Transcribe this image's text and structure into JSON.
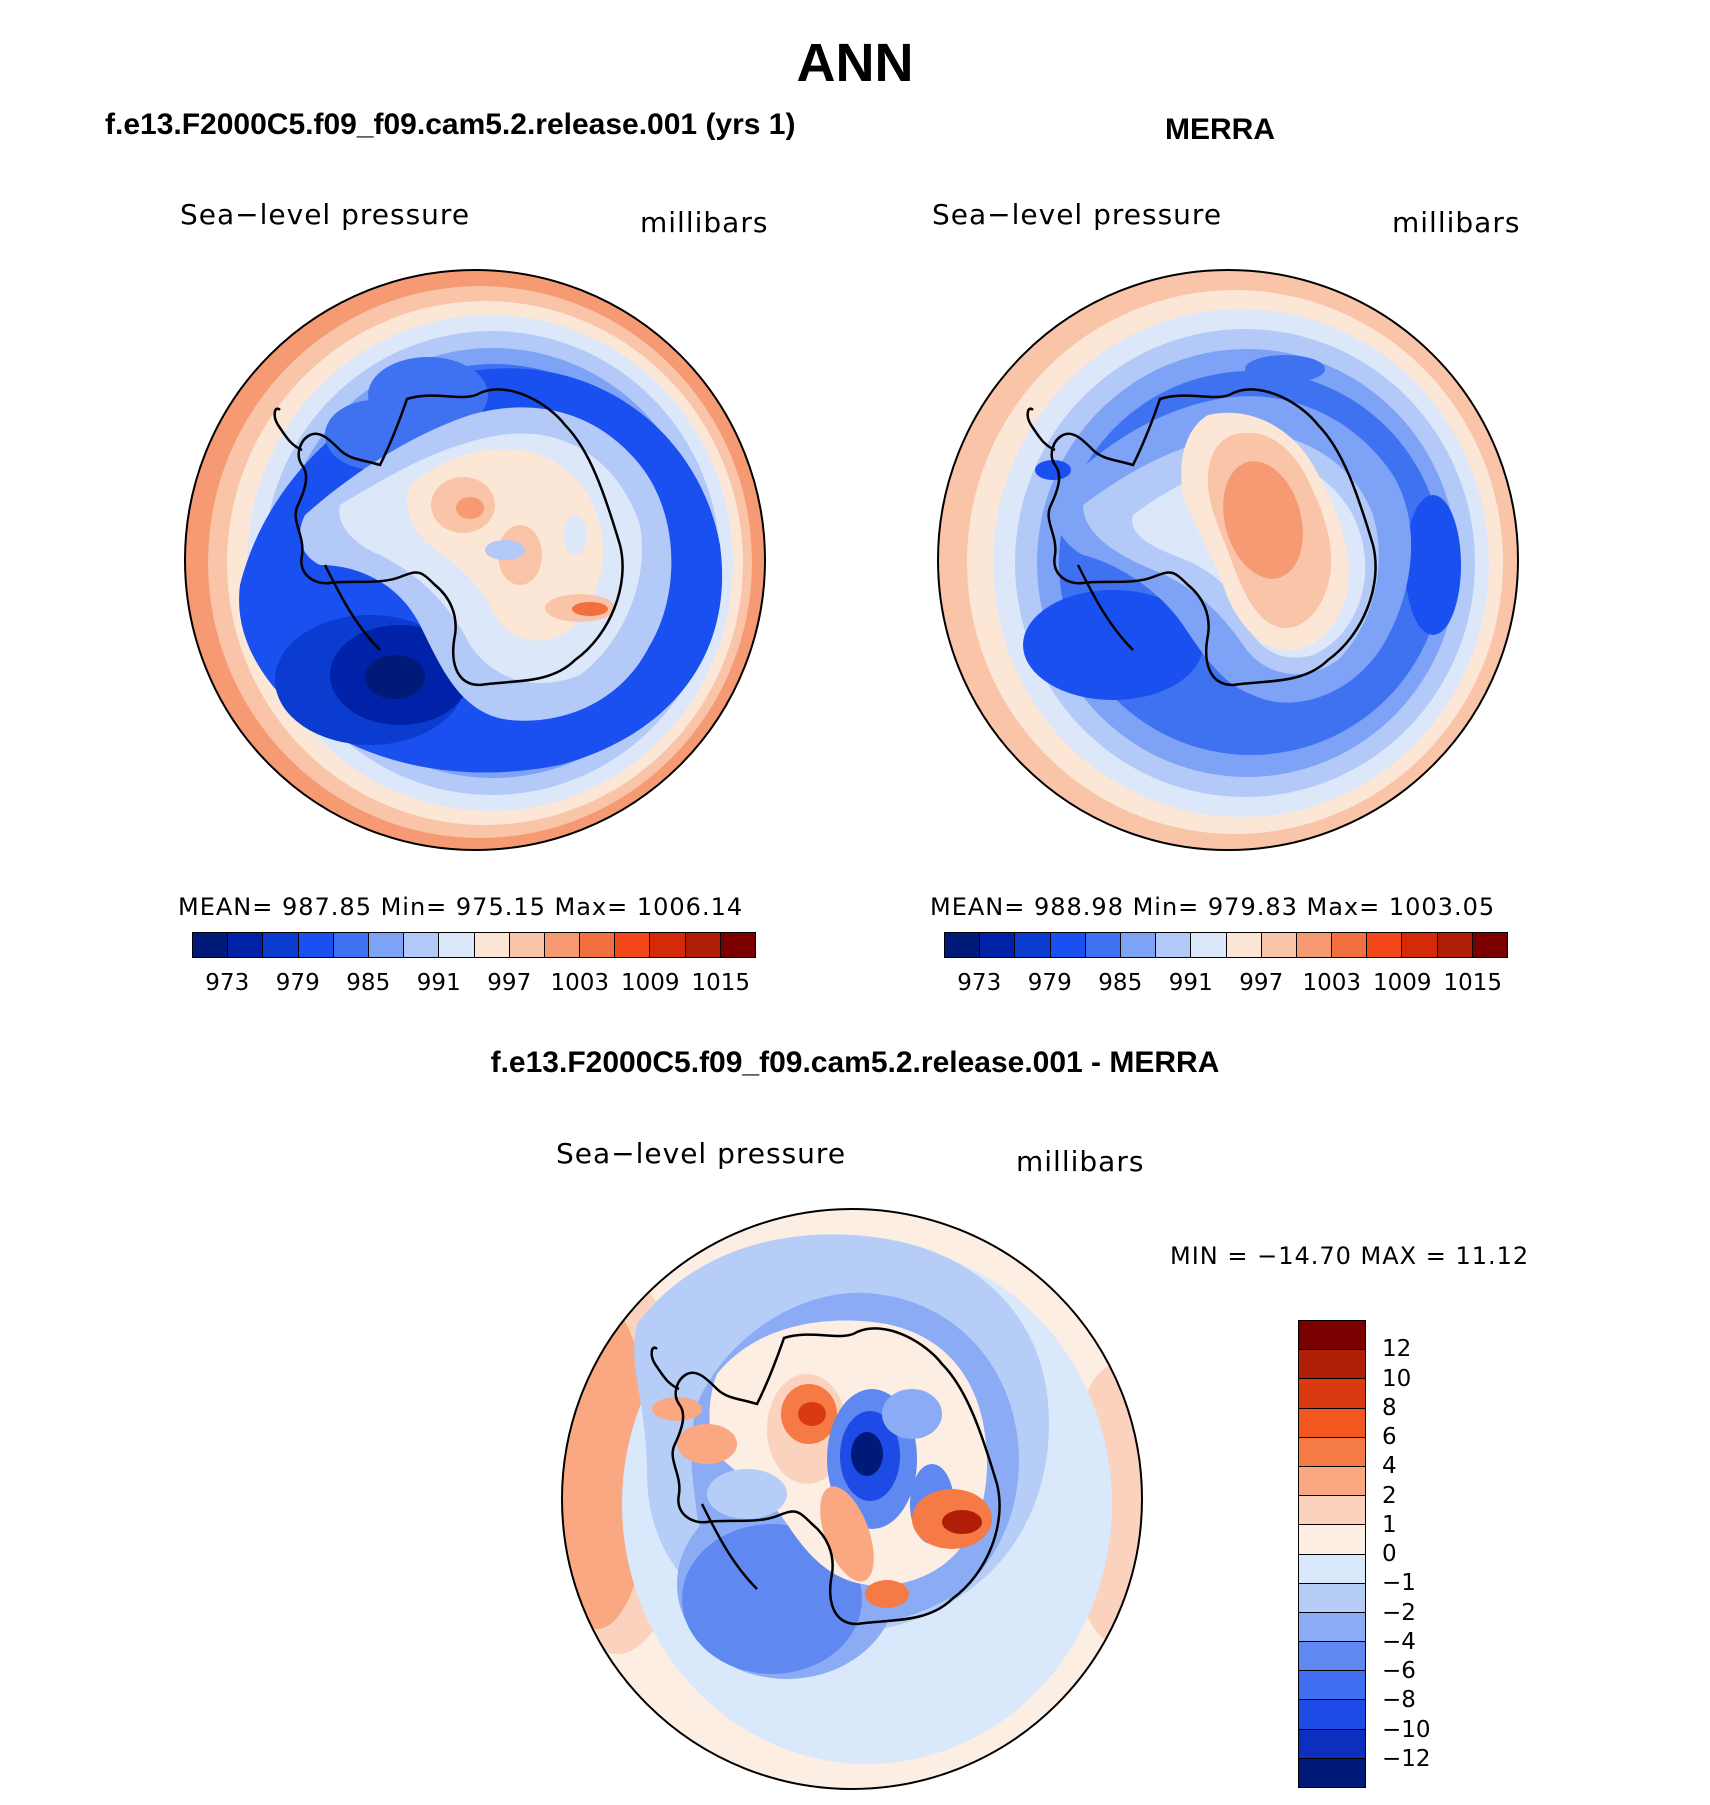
{
  "title": "ANN",
  "panels": {
    "model": {
      "title": "f.e13.F2000C5.f09_f09.cam5.2.release.001 (yrs 1)",
      "variable": "Sea−level pressure",
      "units": "millibars",
      "stats": "MEAN=  987.85   Min=  975.15   Max=  1006.14"
    },
    "obs": {
      "title": "MERRA",
      "variable": "Sea−level pressure",
      "units": "millibars",
      "stats": "MEAN=  988.98   Min=  979.83   Max=  1003.05"
    },
    "diff": {
      "title": "f.e13.F2000C5.f09_f09.cam5.2.release.001 - MERRA",
      "variable": "Sea−level pressure",
      "units": "millibars",
      "stats": "MIN = −14.70 MAX =   11.12"
    }
  },
  "colorbar_abs": {
    "colors": [
      "#001a7a",
      "#0022a8",
      "#0a3ccf",
      "#1a4ff0",
      "#3f72f0",
      "#7ea2f5",
      "#b3c9f8",
      "#dce8fa",
      "#fce6d6",
      "#f9c4a8",
      "#f59a73",
      "#f2703f",
      "#f2481a",
      "#d42a0a",
      "#b01e08",
      "#7a0000"
    ],
    "ticks": [
      "973",
      "979",
      "985",
      "991",
      "997",
      "1003",
      "1009",
      "1015"
    ]
  },
  "colorbar_diff": {
    "colors": [
      "#7a0000",
      "#b01e08",
      "#d93a10",
      "#f2571f",
      "#f57a45",
      "#f9a882",
      "#fbd2bd",
      "#fdeee4",
      "#d9e8fa",
      "#b6cdf8",
      "#8bacf5",
      "#5f88f0",
      "#3f6ef0",
      "#1e4ae6",
      "#0c2fc0",
      "#001a7a"
    ],
    "ticks": [
      "12",
      "10",
      "8",
      "6",
      "4",
      "2",
      "1",
      "0",
      "−1",
      "−2",
      "−4",
      "−6",
      "−8",
      "−10",
      "−12"
    ]
  },
  "chart_data": [
    {
      "type": "heatmap",
      "title": "f.e13.F2000C5.f09_f09.cam5.2.release.001 (yrs 1)",
      "variable": "Sea-level pressure",
      "units": "millibars",
      "projection": "south polar stereographic",
      "mean": 987.85,
      "min": 975.15,
      "max": 1006.14,
      "levels": [
        973,
        976,
        979,
        982,
        985,
        988,
        991,
        994,
        997,
        1000,
        1003,
        1006,
        1009,
        1012,
        1015
      ]
    },
    {
      "type": "heatmap",
      "title": "MERRA",
      "variable": "Sea-level pressure",
      "units": "millibars",
      "projection": "south polar stereographic",
      "mean": 988.98,
      "min": 979.83,
      "max": 1003.05,
      "levels": [
        973,
        976,
        979,
        982,
        985,
        988,
        991,
        994,
        997,
        1000,
        1003,
        1006,
        1009,
        1012,
        1015
      ]
    },
    {
      "type": "heatmap",
      "title": "f.e13.F2000C5.f09_f09.cam5.2.release.001 - MERRA",
      "variable": "Sea-level pressure",
      "units": "millibars",
      "projection": "south polar stereographic",
      "min": -14.7,
      "max": 11.12,
      "levels": [
        -12,
        -10,
        -8,
        -6,
        -4,
        -2,
        -1,
        0,
        1,
        2,
        4,
        6,
        8,
        10,
        12
      ]
    }
  ]
}
